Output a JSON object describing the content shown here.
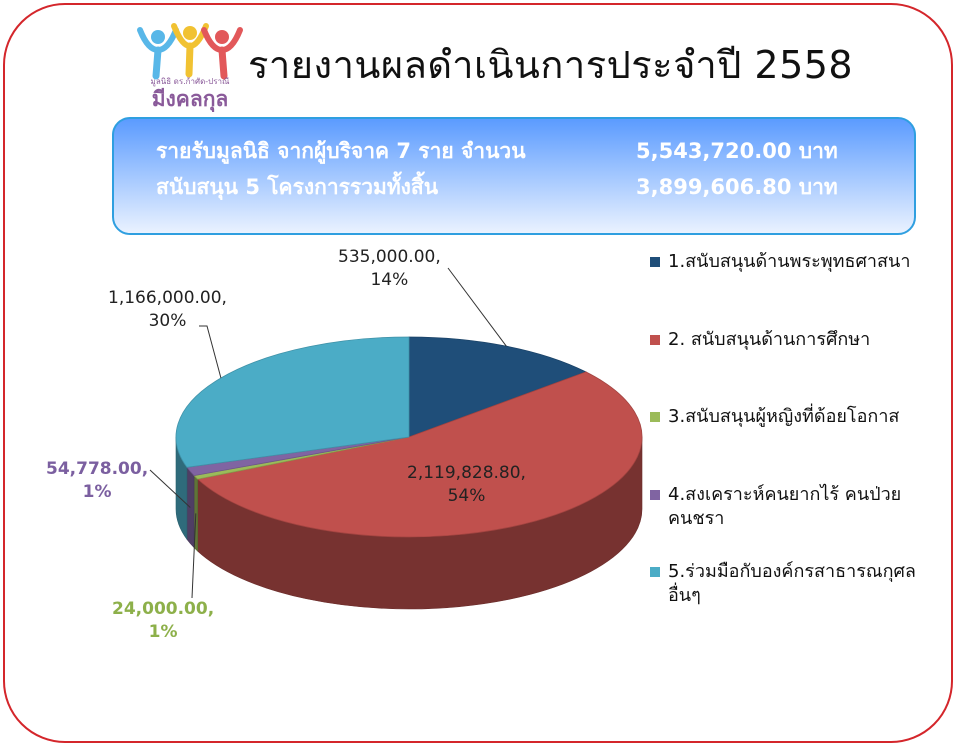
{
  "logo": {
    "caption_small": "มูลนิธิ ดร.ก้าศัด-ปราณี",
    "caption_big": "มีงคลกุล"
  },
  "header": {
    "title": "รายงานผลดำเนินการประจำปี 2558"
  },
  "summary": {
    "line1_label": "รายรับมูลนิธิ จากผู้บริจาค 7 ราย จำนวน",
    "line1_value": "5,543,720.00 บาท",
    "line2_label": "สนับสนุน 5 โครงการรวมทั้งสิ้น",
    "line2_value": "3,899,606.80 บาท"
  },
  "colors": {
    "frame": "#d4262b",
    "summary_border": "#2f9fe0"
  },
  "chart_data": {
    "type": "pie",
    "style": "3d",
    "title": "",
    "legend_position": "right",
    "slices": [
      {
        "legend": "1.สนับสนุนด้านพระพุทธศาสนา",
        "value": 535000.0,
        "value_label": "535,000.00,",
        "percent_label": "14%",
        "color": "#1f4e79",
        "label_color": "#222222"
      },
      {
        "legend": "2. สนับสนุนด้านการศึกษา",
        "value": 2119828.8,
        "value_label": "2,119,828.80,",
        "percent_label": "54%",
        "color": "#c0504d",
        "label_color": "#222222"
      },
      {
        "legend": "3.สนับสนุนผู้หญิงที่ด้อยโอกาส",
        "value": 24000.0,
        "value_label": "24,000.00,",
        "percent_label": "1%",
        "color": "#9bbb59",
        "label_color": "#8db04a"
      },
      {
        "legend": "4.สงเคราะห์คนยากไร้ คนป่วย",
        "legend_line2": "คนชรา",
        "value": 54778.0,
        "value_label": "54,778.00,",
        "percent_label": "1%",
        "color": "#8064a2",
        "label_color": "#7b5fa0"
      },
      {
        "legend": "5.ร่วมมือกับองค์กรสาธารณกุศล",
        "legend_line2": "อื่นๆ",
        "value": 1166000.0,
        "value_label": "1,166,000.00,",
        "percent_label": "30%",
        "color": "#4bacc6",
        "label_color": "#222222"
      }
    ]
  }
}
